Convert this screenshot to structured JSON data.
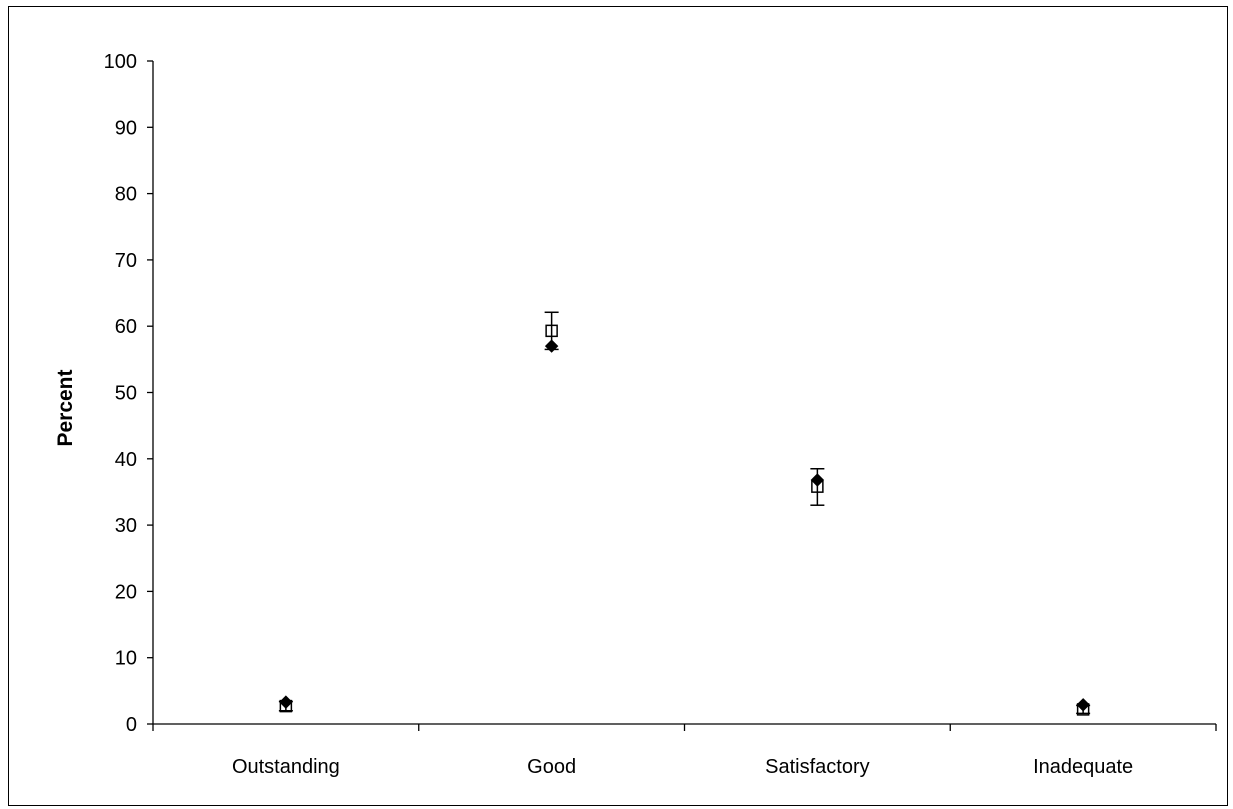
{
  "chart_data": {
    "type": "scatter",
    "title": "",
    "xlabel": "",
    "ylabel": "Percent",
    "ylim": [
      0,
      100
    ],
    "yticks": [
      0,
      10,
      20,
      30,
      40,
      50,
      60,
      70,
      80,
      90,
      100
    ],
    "categories": [
      "Outstanding",
      "Good",
      "Satisfactory",
      "Inadequate"
    ],
    "grid": false,
    "legend": "none",
    "series": [
      {
        "marker": "diamond-filled",
        "color": "#000000",
        "values": [
          3.3,
          57.0,
          36.8,
          2.9
        ]
      },
      {
        "marker": "square-open",
        "color": "#000000",
        "values": [
          2.7,
          59.3,
          35.8,
          2.2
        ],
        "error_low": [
          2.0,
          56.5,
          33.0,
          1.6
        ],
        "error_high": [
          3.4,
          62.1,
          38.5,
          2.8
        ]
      }
    ]
  }
}
